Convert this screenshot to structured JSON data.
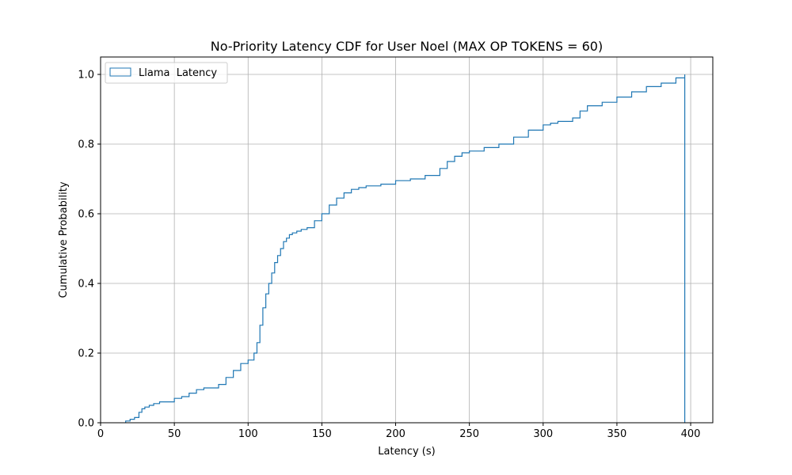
{
  "chart_data": {
    "type": "line",
    "title": "No-Priority Latency CDF for User Noel (MAX OP TOKENS = 60)",
    "xlabel": "Latency (s)",
    "ylabel": "Cumulative Probability",
    "xlim": [
      0,
      415
    ],
    "ylim": [
      0,
      1.05
    ],
    "xticks": [
      0,
      50,
      100,
      150,
      200,
      250,
      300,
      350,
      400
    ],
    "yticks": [
      0.0,
      0.2,
      0.4,
      0.6,
      0.8,
      1.0
    ],
    "xtick_labels": [
      "0",
      "50",
      "100",
      "150",
      "200",
      "250",
      "300",
      "350",
      "400"
    ],
    "ytick_labels": [
      "0.0",
      "0.2",
      "0.4",
      "0.6",
      "0.8",
      "1.0"
    ],
    "grid": true,
    "legend_position": "top-left",
    "series": [
      {
        "name": "Llama  Latency",
        "color": "#1f77b4",
        "style": "step-histogram-cdf",
        "x": [
          17,
          20,
          23,
          26,
          28,
          30,
          33,
          36,
          40,
          45,
          50,
          55,
          60,
          65,
          70,
          75,
          80,
          85,
          90,
          95,
          100,
          104,
          106,
          108,
          110,
          112,
          114,
          116,
          118,
          120,
          122,
          124,
          126,
          128,
          130,
          133,
          136,
          140,
          145,
          150,
          155,
          160,
          165,
          170,
          175,
          180,
          190,
          200,
          210,
          220,
          230,
          235,
          240,
          245,
          250,
          260,
          270,
          280,
          290,
          300,
          305,
          310,
          315,
          320,
          325,
          330,
          340,
          350,
          360,
          370,
          380,
          390,
          396
        ],
        "y": [
          0.005,
          0.01,
          0.015,
          0.03,
          0.04,
          0.045,
          0.05,
          0.055,
          0.06,
          0.06,
          0.07,
          0.075,
          0.085,
          0.095,
          0.1,
          0.1,
          0.11,
          0.13,
          0.15,
          0.17,
          0.18,
          0.2,
          0.23,
          0.28,
          0.33,
          0.37,
          0.4,
          0.43,
          0.46,
          0.48,
          0.5,
          0.52,
          0.53,
          0.54,
          0.545,
          0.55,
          0.555,
          0.56,
          0.58,
          0.6,
          0.625,
          0.645,
          0.66,
          0.67,
          0.675,
          0.68,
          0.685,
          0.695,
          0.7,
          0.71,
          0.73,
          0.75,
          0.765,
          0.775,
          0.78,
          0.79,
          0.8,
          0.82,
          0.84,
          0.855,
          0.86,
          0.865,
          0.865,
          0.875,
          0.895,
          0.91,
          0.92,
          0.935,
          0.95,
          0.965,
          0.975,
          0.99,
          1.0
        ]
      }
    ]
  }
}
